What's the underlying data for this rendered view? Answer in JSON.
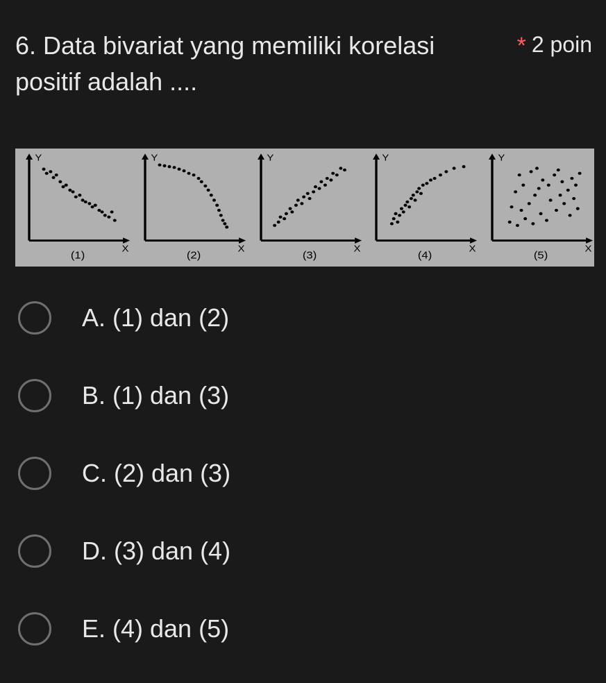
{
  "question": {
    "number_text": "6. Data bivariat yang memiliki korelasi positif adalah ....",
    "required_mark": "*",
    "points_label": "2 poin"
  },
  "figure": {
    "background": "#b0b0b0",
    "axis_color": "#000000",
    "point_color": "#000000",
    "point_radius": 1.5,
    "axis_stroke": 2,
    "panels": [
      {
        "label": "(1)",
        "y_label": "Y",
        "x_label": "X",
        "points": [
          [
            15,
            85
          ],
          [
            18,
            80
          ],
          [
            22,
            82
          ],
          [
            25,
            75
          ],
          [
            28,
            78
          ],
          [
            32,
            70
          ],
          [
            35,
            64
          ],
          [
            38,
            66
          ],
          [
            42,
            60
          ],
          [
            45,
            58
          ],
          [
            48,
            52
          ],
          [
            52,
            54
          ],
          [
            55,
            48
          ],
          [
            58,
            46
          ],
          [
            62,
            44
          ],
          [
            65,
            40
          ],
          [
            68,
            42
          ],
          [
            72,
            36
          ],
          [
            75,
            34
          ],
          [
            78,
            30
          ],
          [
            82,
            28
          ],
          [
            85,
            34
          ],
          [
            88,
            24
          ]
        ]
      },
      {
        "label": "(2)",
        "y_label": "Y",
        "x_label": "X",
        "points": [
          [
            15,
            90
          ],
          [
            20,
            89
          ],
          [
            25,
            88
          ],
          [
            30,
            87
          ],
          [
            35,
            85
          ],
          [
            40,
            83
          ],
          [
            45,
            80
          ],
          [
            50,
            78
          ],
          [
            55,
            74
          ],
          [
            58,
            70
          ],
          [
            62,
            65
          ],
          [
            65,
            60
          ],
          [
            68,
            54
          ],
          [
            71,
            48
          ],
          [
            74,
            42
          ],
          [
            76,
            36
          ],
          [
            78,
            30
          ],
          [
            80,
            24
          ],
          [
            82,
            20
          ],
          [
            84,
            16
          ]
        ]
      },
      {
        "label": "(3)",
        "y_label": "Y",
        "x_label": "X",
        "points": [
          [
            14,
            18
          ],
          [
            18,
            22
          ],
          [
            20,
            28
          ],
          [
            24,
            26
          ],
          [
            26,
            32
          ],
          [
            30,
            38
          ],
          [
            32,
            34
          ],
          [
            36,
            42
          ],
          [
            38,
            48
          ],
          [
            42,
            44
          ],
          [
            44,
            52
          ],
          [
            48,
            56
          ],
          [
            50,
            50
          ],
          [
            54,
            58
          ],
          [
            56,
            64
          ],
          [
            60,
            62
          ],
          [
            62,
            70
          ],
          [
            66,
            66
          ],
          [
            68,
            74
          ],
          [
            72,
            72
          ],
          [
            74,
            80
          ],
          [
            78,
            78
          ],
          [
            82,
            86
          ],
          [
            86,
            84
          ]
        ]
      },
      {
        "label": "(4)",
        "y_label": "Y",
        "x_label": "X",
        "points": [
          [
            16,
            20
          ],
          [
            18,
            26
          ],
          [
            22,
            22
          ],
          [
            20,
            32
          ],
          [
            24,
            30
          ],
          [
            26,
            38
          ],
          [
            28,
            34
          ],
          [
            30,
            42
          ],
          [
            32,
            46
          ],
          [
            34,
            40
          ],
          [
            36,
            50
          ],
          [
            38,
            54
          ],
          [
            40,
            48
          ],
          [
            42,
            58
          ],
          [
            44,
            62
          ],
          [
            46,
            56
          ],
          [
            48,
            66
          ],
          [
            52,
            68
          ],
          [
            56,
            72
          ],
          [
            60,
            74
          ],
          [
            66,
            78
          ],
          [
            72,
            82
          ],
          [
            80,
            86
          ],
          [
            90,
            88
          ]
        ]
      },
      {
        "label": "(5)",
        "y_label": "Y",
        "x_label": "X",
        "points": [
          [
            18,
            22
          ],
          [
            26,
            18
          ],
          [
            34,
            26
          ],
          [
            20,
            40
          ],
          [
            30,
            36
          ],
          [
            42,
            20
          ],
          [
            38,
            44
          ],
          [
            24,
            58
          ],
          [
            50,
            32
          ],
          [
            44,
            54
          ],
          [
            32,
            66
          ],
          [
            56,
            24
          ],
          [
            48,
            62
          ],
          [
            60,
            48
          ],
          [
            28,
            78
          ],
          [
            52,
            72
          ],
          [
            66,
            36
          ],
          [
            40,
            82
          ],
          [
            58,
            66
          ],
          [
            70,
            54
          ],
          [
            46,
            86
          ],
          [
            64,
            78
          ],
          [
            74,
            44
          ],
          [
            72,
            70
          ],
          [
            80,
            30
          ],
          [
            78,
            60
          ],
          [
            68,
            84
          ],
          [
            84,
            50
          ],
          [
            82,
            74
          ],
          [
            88,
            38
          ],
          [
            86,
            66
          ],
          [
            90,
            80
          ]
        ]
      }
    ]
  },
  "options": [
    {
      "key": "A",
      "label": "A. (1) dan (2)"
    },
    {
      "key": "B",
      "label": "B. (1) dan (3)"
    },
    {
      "key": "C",
      "label": "C. (2) dan (3)"
    },
    {
      "key": "D",
      "label": "D. (3) dan (4)"
    },
    {
      "key": "E",
      "label": "E. (4) dan (5)"
    }
  ],
  "colors": {
    "background": "#1a1a1a",
    "text": "#e8e8e8",
    "required": "#ff5c5c",
    "radio_border": "#6f6f6f"
  }
}
